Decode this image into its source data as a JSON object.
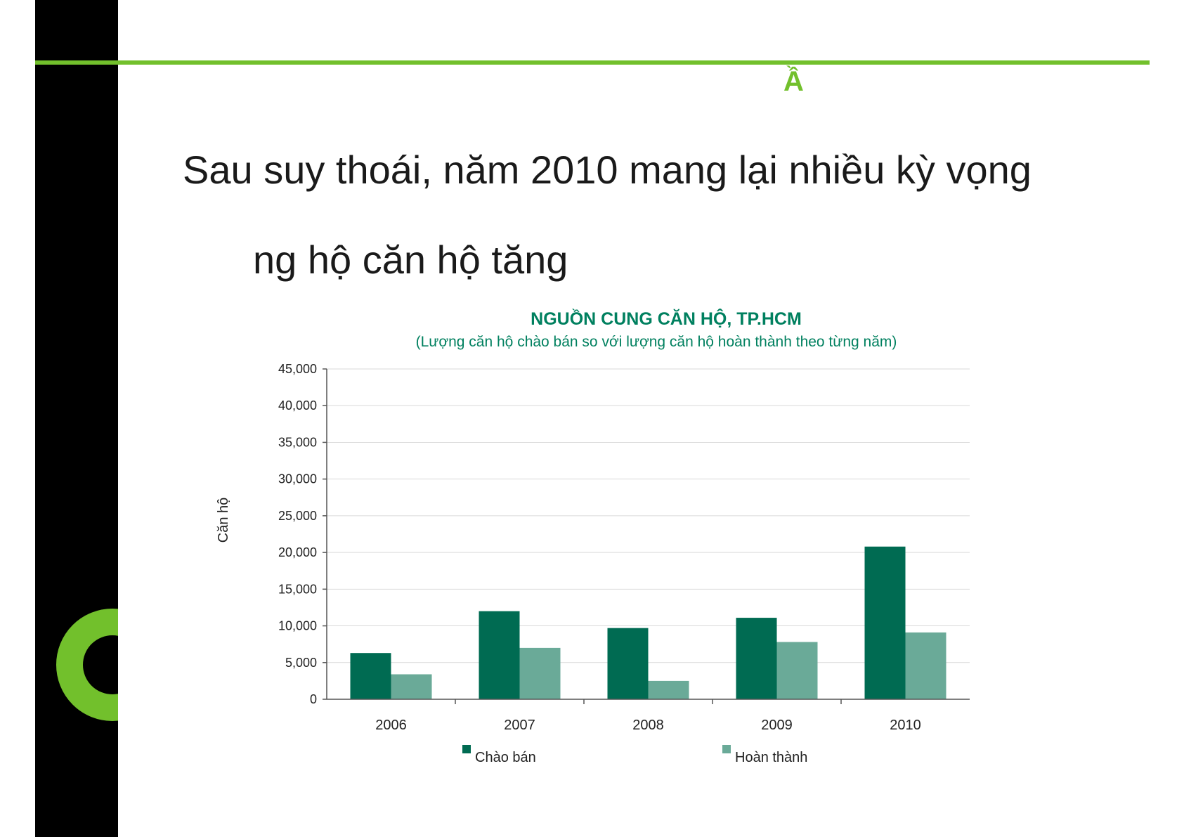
{
  "slide": {
    "heading_glyph": "Ầ",
    "body_line_1": "Sau suy thoái, năm 2010 mang lại nhiều kỳ vọng",
    "body_line_2": "ng hộ căn hộ tăng"
  },
  "colors": {
    "accent": "#72c02c",
    "sidebar": "#000000",
    "series_offer": "#006b52",
    "series_done": "#6aaa98",
    "title": "#00805f"
  },
  "chart_data": {
    "type": "bar",
    "title": "NGUỒN CUNG CĂN HỘ, TP.HCM",
    "subtitle": "(Lượng căn hộ chào bán so với lượng căn hộ hoàn thành theo từng năm)",
    "ylabel": "Căn hộ",
    "xlabel": "",
    "categories": [
      "2006",
      "2007",
      "2008",
      "2009",
      "2010"
    ],
    "series": [
      {
        "name": "Chào bán",
        "values": [
          6300,
          12000,
          9700,
          11100,
          20800
        ]
      },
      {
        "name": "Hoàn thành",
        "values": [
          3400,
          7000,
          2500,
          7800,
          9100
        ]
      }
    ],
    "ylim": [
      0,
      45000
    ],
    "yticks": [
      "0",
      "5,000",
      "10,000",
      "15,000",
      "20,000",
      "25,000",
      "30,000",
      "35,000",
      "40,000",
      "45,000"
    ],
    "grid": true,
    "legend_position": "bottom"
  }
}
